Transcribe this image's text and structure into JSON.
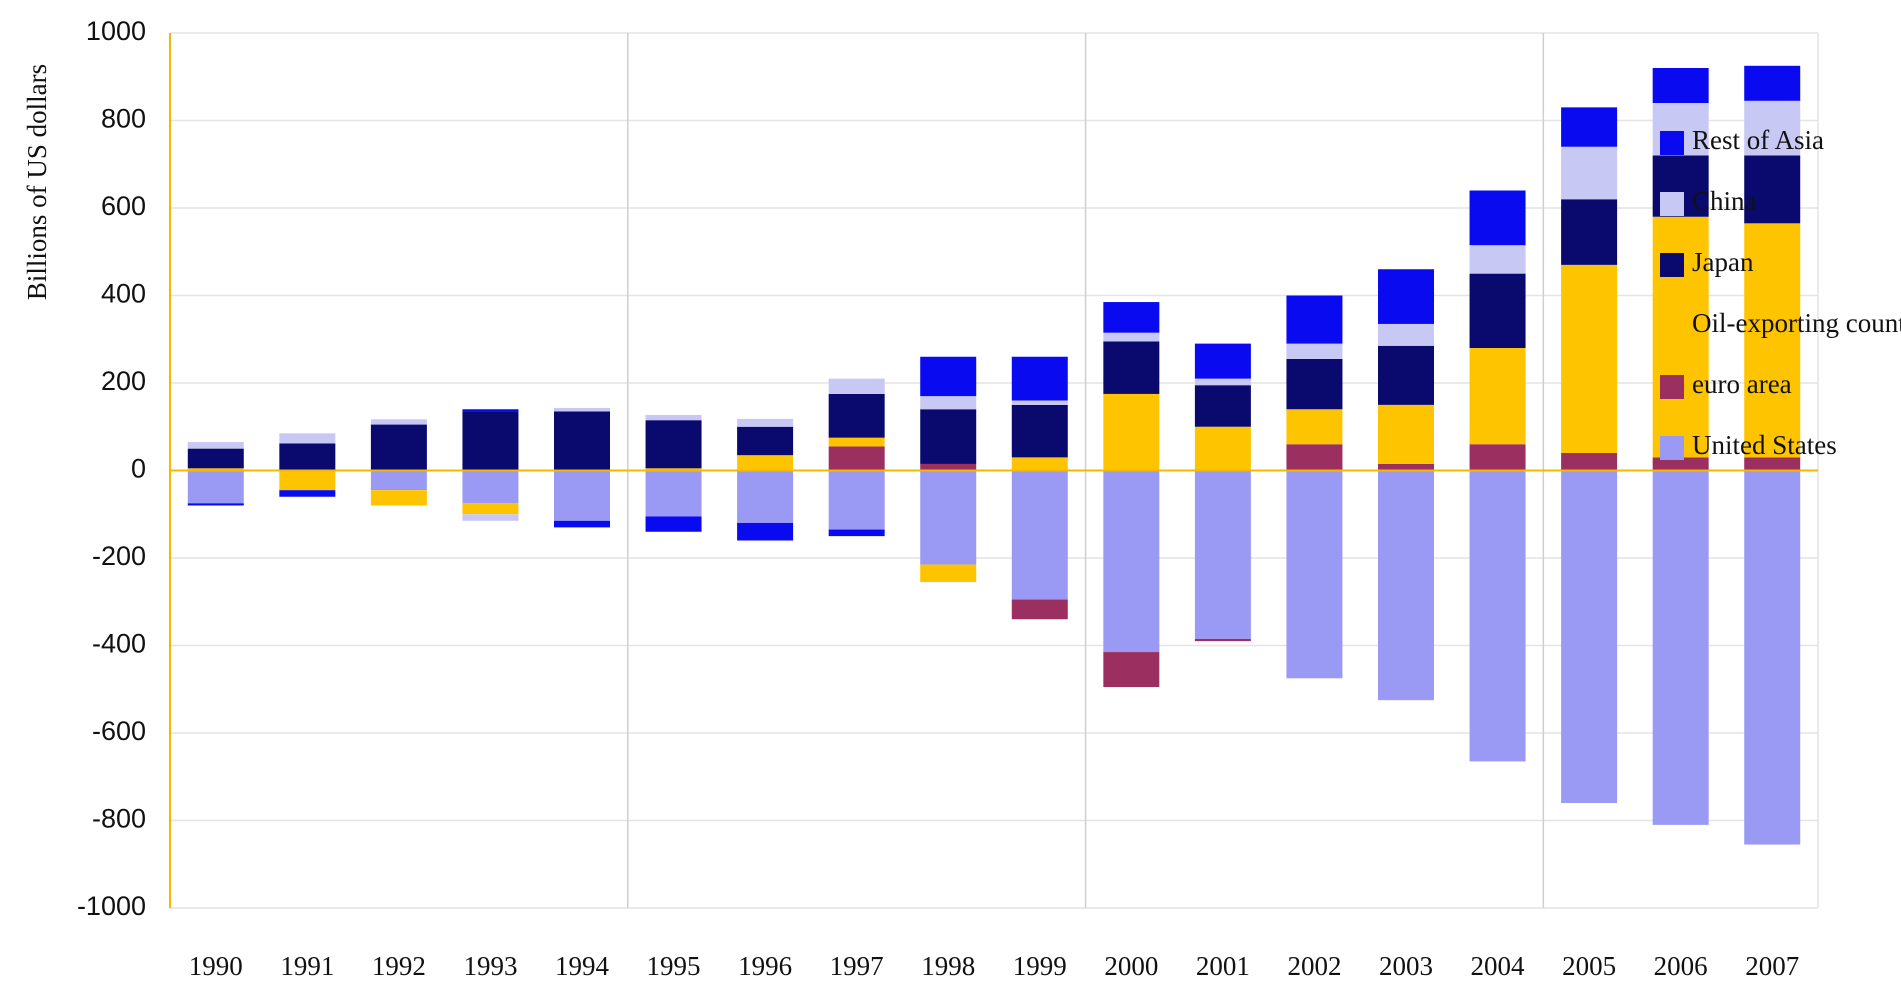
{
  "chart_data": {
    "type": "stacked-bar",
    "ylabel": "Billions of US dollars",
    "categories": [
      "1990",
      "1991",
      "1992",
      "1993",
      "1994",
      "1995",
      "1996",
      "1997",
      "1998",
      "1999",
      "2000",
      "2001",
      "2002",
      "2003",
      "2004",
      "2005",
      "2006",
      "2007"
    ],
    "series": [
      {
        "name": "Rest of Asia",
        "color": "#0a0af0",
        "values": [
          -5,
          -15,
          0,
          5,
          -15,
          -35,
          -40,
          -15,
          90,
          100,
          70,
          80,
          110,
          125,
          125,
          90,
          80,
          80
        ]
      },
      {
        "name": "China",
        "color": "#c8c8f5",
        "values": [
          15,
          23,
          12,
          -15,
          8,
          12,
          18,
          35,
          30,
          10,
          20,
          15,
          35,
          50,
          65,
          120,
          120,
          125
        ]
      },
      {
        "name": "Japan",
        "color": "#0a0a6e",
        "values": [
          45,
          62,
          105,
          135,
          135,
          110,
          65,
          100,
          125,
          120,
          120,
          95,
          115,
          135,
          170,
          150,
          140,
          155
        ]
      },
      {
        "name": "Oil-exporting countries",
        "color": "#ffc400",
        "values": [
          5,
          -45,
          -35,
          -25,
          0,
          5,
          35,
          20,
          -40,
          30,
          175,
          100,
          80,
          135,
          220,
          430,
          550,
          535
        ]
      },
      {
        "name": "euro area",
        "color": "#9b3060",
        "values": [
          0,
          0,
          0,
          0,
          0,
          0,
          0,
          55,
          15,
          -45,
          -80,
          -5,
          60,
          15,
          60,
          40,
          30,
          30
        ]
      },
      {
        "name": "United States",
        "color": "#9a9af5",
        "values": [
          -75,
          0,
          -45,
          -75,
          -115,
          -105,
          -120,
          -135,
          -215,
          -295,
          -415,
          -385,
          -475,
          -525,
          -665,
          -760,
          -810,
          -855
        ]
      }
    ],
    "ylim": [
      -1000,
      1000
    ],
    "yticks": [
      -1000,
      -800,
      -600,
      -400,
      -200,
      0,
      200,
      400,
      600,
      800,
      1000
    ],
    "grid": true
  }
}
